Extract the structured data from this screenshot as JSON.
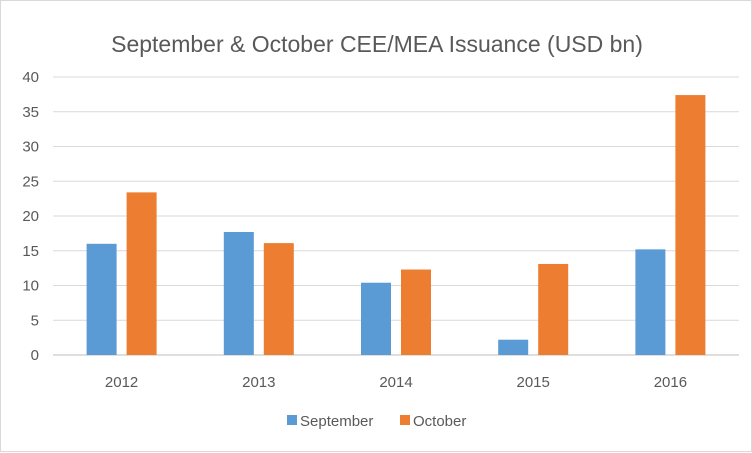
{
  "chart_data": {
    "type": "bar",
    "title": "September & October CEE/MEA Issuance (USD bn)",
    "xlabel": "",
    "ylabel": "",
    "categories": [
      "2012",
      "2013",
      "2014",
      "2015",
      "2016"
    ],
    "series": [
      {
        "name": "September",
        "color": "#5b9bd5",
        "values": [
          16.0,
          17.7,
          10.4,
          2.2,
          15.2
        ]
      },
      {
        "name": "October",
        "color": "#ed7d31",
        "values": [
          23.4,
          16.1,
          12.3,
          13.1,
          37.4
        ]
      }
    ],
    "ylim": [
      0,
      40
    ],
    "yticks": [
      0,
      5,
      10,
      15,
      20,
      25,
      30,
      35,
      40
    ],
    "grid": true,
    "legend_position": "bottom"
  }
}
